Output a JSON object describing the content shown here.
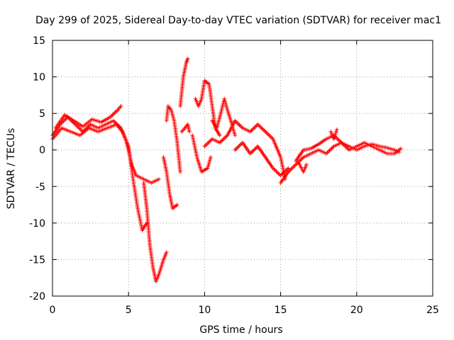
{
  "chart_data": {
    "type": "scatter",
    "title": "Day 299 of 2025, Sidereal Day-to-day VTEC variation (SDTVAR) for receiver mac1",
    "xlabel": "GPS time / hours",
    "ylabel": "SDTVAR / TECUs",
    "xlim": [
      0,
      25
    ],
    "ylim": [
      -20,
      15
    ],
    "xticks": [
      0,
      5,
      10,
      15,
      20,
      25
    ],
    "yticks": [
      -20,
      -15,
      -10,
      -5,
      0,
      5,
      10,
      15
    ],
    "grid": true,
    "marker": "+",
    "series": [
      {
        "name": "SDTVAR",
        "color": "#ff0000",
        "tracks": [
          [
            [
              0,
              2
            ],
            [
              0.5,
              3.5
            ],
            [
              1,
              4.5
            ],
            [
              1.5,
              3.5
            ],
            [
              2,
              2.5
            ],
            [
              2.5,
              3.5
            ],
            [
              3,
              3
            ],
            [
              3.5,
              3.5
            ],
            [
              4,
              4
            ],
            [
              4.5,
              3
            ],
            [
              4.8,
              1.5
            ],
            [
              5,
              0
            ],
            [
              5.2,
              -2
            ],
            [
              5.5,
              -3.5
            ],
            [
              6,
              -4
            ],
            [
              6.5,
              -4.5
            ],
            [
              7,
              -4
            ]
          ],
          [
            [
              0,
              1.5
            ],
            [
              0.6,
              3
            ],
            [
              1.2,
              2.5
            ],
            [
              1.8,
              2
            ],
            [
              2.4,
              3
            ],
            [
              3,
              2.5
            ],
            [
              3.6,
              3
            ],
            [
              4.2,
              3.5
            ],
            [
              4.6,
              2.5
            ],
            [
              5,
              0.5
            ],
            [
              5.3,
              -4
            ],
            [
              5.6,
              -8
            ],
            [
              5.9,
              -11
            ],
            [
              6.2,
              -10
            ]
          ],
          [
            [
              0.2,
              3
            ],
            [
              0.8,
              4.8
            ],
            [
              1.4,
              4
            ],
            [
              2,
              3.2
            ],
            [
              2.6,
              4.2
            ],
            [
              3.2,
              3.8
            ],
            [
              3.8,
              4.5
            ],
            [
              4.3,
              5.5
            ],
            [
              4.5,
              6
            ]
          ],
          [
            [
              6,
              -4.5
            ],
            [
              6.2,
              -8
            ],
            [
              6.4,
              -13
            ],
            [
              6.6,
              -16
            ],
            [
              6.8,
              -18
            ],
            [
              7,
              -17
            ],
            [
              7.3,
              -15
            ],
            [
              7.5,
              -14
            ]
          ],
          [
            [
              7.3,
              -1
            ],
            [
              7.5,
              -3
            ],
            [
              7.7,
              -6
            ],
            [
              7.9,
              -8
            ],
            [
              8.2,
              -7.5
            ]
          ],
          [
            [
              7.5,
              4
            ],
            [
              7.6,
              6
            ],
            [
              7.8,
              5.5
            ],
            [
              8,
              4
            ],
            [
              8.2,
              1
            ],
            [
              8.4,
              -3
            ]
          ],
          [
            [
              8.5,
              2.5
            ],
            [
              8.7,
              3
            ],
            [
              8.9,
              3.5
            ],
            [
              9,
              2.5
            ]
          ],
          [
            [
              8.4,
              6
            ],
            [
              8.6,
              10
            ],
            [
              8.8,
              12
            ],
            [
              8.9,
              12.5
            ]
          ],
          [
            [
              9.4,
              7
            ],
            [
              9.6,
              6
            ],
            [
              9.8,
              7
            ],
            [
              10,
              9.5
            ],
            [
              10.3,
              9
            ],
            [
              10.5,
              6
            ],
            [
              10.7,
              3
            ],
            [
              11,
              2
            ]
          ],
          [
            [
              9.2,
              2
            ],
            [
              9.5,
              -1
            ],
            [
              9.8,
              -3
            ],
            [
              10.2,
              -2.5
            ],
            [
              10.4,
              -1
            ]
          ],
          [
            [
              10.5,
              4
            ],
            [
              10.8,
              3
            ],
            [
              11,
              4.5
            ],
            [
              11.3,
              7
            ],
            [
              11.5,
              5.5
            ],
            [
              11.8,
              3.5
            ],
            [
              12,
              2
            ]
          ],
          [
            [
              10,
              0.5
            ],
            [
              10.5,
              1.5
            ],
            [
              11,
              1
            ],
            [
              11.5,
              2
            ],
            [
              12,
              4
            ],
            [
              12.5,
              3
            ],
            [
              13,
              2.5
            ],
            [
              13.5,
              3.5
            ],
            [
              14,
              2.5
            ],
            [
              14.5,
              1.5
            ],
            [
              15,
              -1
            ],
            [
              15.3,
              -4
            ]
          ],
          [
            [
              12,
              0
            ],
            [
              12.5,
              1
            ],
            [
              13,
              -0.5
            ],
            [
              13.5,
              0.5
            ],
            [
              14,
              -1
            ],
            [
              14.5,
              -2.5
            ],
            [
              15,
              -3.5
            ],
            [
              15.5,
              -2.5
            ]
          ],
          [
            [
              15,
              -4.5
            ],
            [
              15.5,
              -3
            ],
            [
              16,
              -2
            ],
            [
              16.5,
              -1
            ],
            [
              17,
              -0.5
            ],
            [
              17.5,
              0
            ],
            [
              18,
              -0.5
            ],
            [
              18.5,
              0.5
            ],
            [
              19,
              1
            ],
            [
              19.5,
              0.5
            ],
            [
              20,
              0
            ],
            [
              20.5,
              0.5
            ],
            [
              21,
              0.8
            ],
            [
              21.5,
              0.5
            ],
            [
              22,
              0.3
            ],
            [
              22.5,
              0
            ],
            [
              22.8,
              -0.3
            ]
          ],
          [
            [
              16,
              -1.5
            ],
            [
              16.5,
              0
            ],
            [
              17,
              0.2
            ],
            [
              17.5,
              0.8
            ],
            [
              18,
              1.5
            ],
            [
              18.5,
              2
            ],
            [
              19,
              1
            ],
            [
              19.5,
              0
            ],
            [
              20,
              0.5
            ],
            [
              20.5,
              1
            ],
            [
              21,
              0.5
            ],
            [
              21.5,
              0
            ],
            [
              22,
              -0.5
            ],
            [
              22.5,
              -0.5
            ],
            [
              22.9,
              0.2
            ]
          ],
          [
            [
              16.2,
              -1.8
            ],
            [
              16.5,
              -3
            ],
            [
              16.7,
              -2
            ]
          ],
          [
            [
              18.3,
              2.5
            ],
            [
              18.5,
              1.5
            ],
            [
              18.7,
              2.8
            ]
          ]
        ]
      }
    ]
  }
}
